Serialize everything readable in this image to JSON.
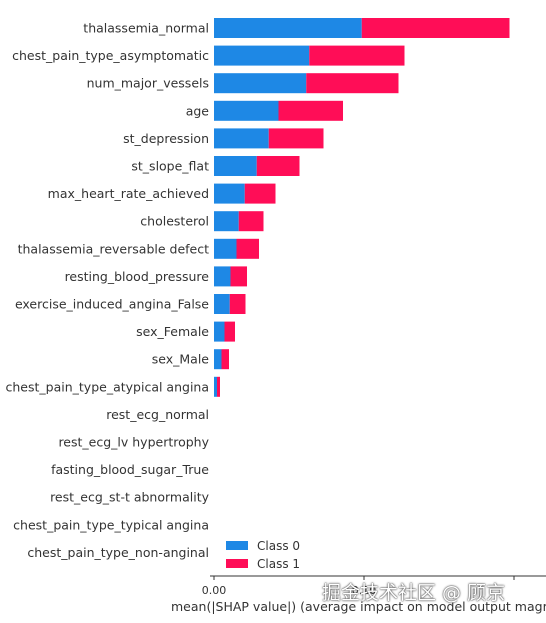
{
  "chart_data": {
    "type": "bar",
    "orientation": "horizontal",
    "stacked": true,
    "categories": [
      "thalassemia_normal",
      "chest_pain_type_asymptomatic",
      "num_major_vessels",
      "age",
      "st_depression",
      "st_slope_flat",
      "max_heart_rate_achieved",
      "cholesterol",
      "thalassemia_reversable defect",
      "resting_blood_pressure",
      "exercise_induced_angina_False",
      "sex_Female",
      "sex_Male",
      "chest_pain_type_atypical angina",
      "rest_ecg_normal",
      "rest_ecg_lv hypertrophy",
      "fasting_blood_sugar_True",
      "rest_ecg_st-t abnormality",
      "chest_pain_type_typical angina",
      "chest_pain_type_non-anginal"
    ],
    "series": [
      {
        "name": "Class 0",
        "color": "#1e88e5",
        "values": [
          0.0985,
          0.0635,
          0.0615,
          0.043,
          0.0365,
          0.0285,
          0.0205,
          0.0165,
          0.015,
          0.011,
          0.0105,
          0.007,
          0.005,
          0.002,
          0,
          0,
          0,
          0,
          0,
          0
        ]
      },
      {
        "name": "Class 1",
        "color": "#ff0d57",
        "values": [
          0.0985,
          0.0635,
          0.0615,
          0.043,
          0.0365,
          0.0285,
          0.0205,
          0.0165,
          0.015,
          0.011,
          0.0105,
          0.007,
          0.005,
          0.002,
          0,
          0,
          0,
          0,
          0,
          0
        ]
      }
    ],
    "xlabel": "mean(|SHAP value|) (average impact on model output magr",
    "ylabel": "",
    "xlim": [
      0,
      0.3
    ],
    "xticks": [
      0.0,
      0.1,
      0.2,
      0.3
    ],
    "xtick_labels": [
      "0.00",
      "0.10",
      "",
      "0.30"
    ],
    "legend": {
      "placement": "lower-right",
      "entries": [
        "Class 0",
        "Class 1"
      ]
    },
    "grid": false
  },
  "watermark": "掘金技术社区 @ 顾京"
}
